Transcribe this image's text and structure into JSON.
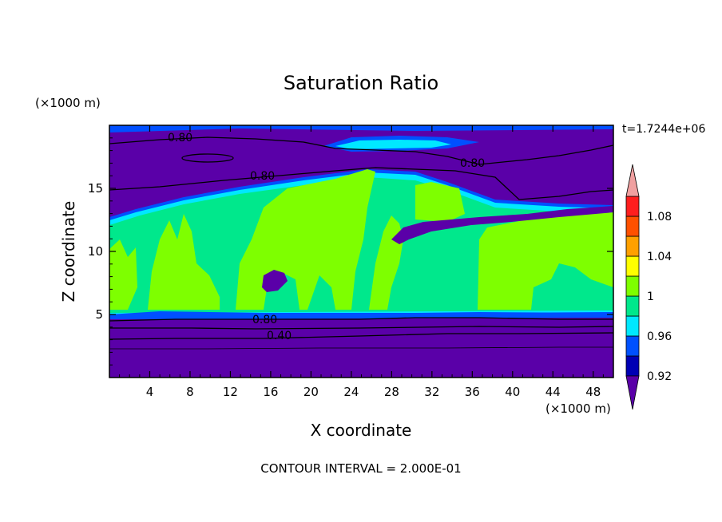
{
  "chart_data": {
    "type": "contour",
    "title": "Saturation Ratio",
    "xlabel": "X coordinate",
    "ylabel": "Z coordinate",
    "x_unit": "(×1000 m)",
    "y_unit": "(×1000 m)",
    "time_label": "t=1.7244e+06",
    "footer": "CONTOUR INTERVAL = 2.000E-01",
    "xlim": [
      0,
      50
    ],
    "ylim": [
      0,
      20
    ],
    "x_ticks": [
      4,
      8,
      12,
      16,
      20,
      24,
      28,
      32,
      36,
      40,
      44,
      48
    ],
    "y_ticks": [
      5,
      10,
      15
    ],
    "colorbar": {
      "levels": [
        0.92,
        0.94,
        0.96,
        0.98,
        1.0,
        1.02,
        1.04,
        1.06,
        1.08,
        1.1
      ],
      "tick_labels": [
        "0.92",
        "0.96",
        "1",
        "1.04",
        "1.08"
      ],
      "colors": [
        "#5a00a8",
        "#0000b4",
        "#0050ff",
        "#00e8ff",
        "#00e88c",
        "#7eff00",
        "#ffff00",
        "#ffa000",
        "#ff5000",
        "#ff1e1e",
        "#f0a0a0"
      ]
    },
    "contour_lines": [
      {
        "level": "0.80",
        "label": "0.80"
      },
      {
        "level": "0.40",
        "label": "0.40"
      }
    ],
    "contour_label_instances": [
      "0.80",
      "0.80",
      "0.80",
      "0.80",
      "0.40"
    ]
  }
}
